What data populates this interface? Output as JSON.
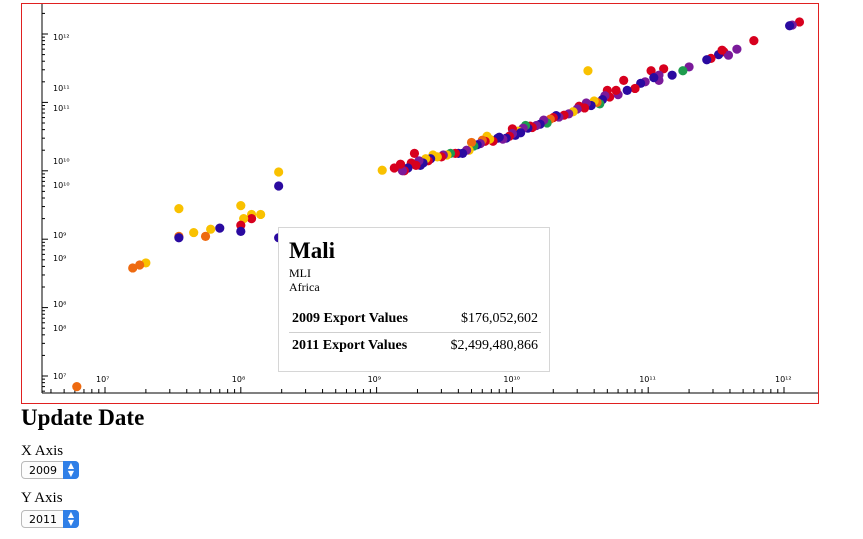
{
  "chart_data": {
    "type": "scatter",
    "x_scale": "log",
    "y_scale": "log",
    "xlim": [
      4000000,
      1400000000000
    ],
    "ylim": [
      8000000,
      1600000000000
    ],
    "x_ticks": [
      "10⁷",
      "10⁸",
      "10⁹",
      "10¹⁰",
      "10¹¹",
      "10¹²"
    ],
    "y_ticks": [
      "10⁷",
      "10⁸",
      "10⁸",
      "10⁹",
      "10⁹",
      "10¹⁰",
      "10¹⁰",
      "10¹¹",
      "10¹¹",
      "10¹²"
    ],
    "title": "",
    "xlabel": "",
    "ylabel": "",
    "colors": {
      "red": "#d7001e",
      "orange": "#ee6a10",
      "yellow": "#f9c100",
      "blue": "#2a0aa0",
      "purple": "#7a1a9a",
      "green": "#1e9c4e"
    },
    "points": [
      {
        "x": 6200000.0,
        "y": 7000000.0,
        "c": "orange"
      },
      {
        "x": 1300000000000.0,
        "y": 1500000000000.0,
        "c": "red"
      },
      {
        "x": 1150000000000.0,
        "y": 1350000000000.0,
        "c": "purple"
      },
      {
        "x": 1100000000000.0,
        "y": 1320000000000.0,
        "c": "blue"
      },
      {
        "x": 600000000000.0,
        "y": 800000000000.0,
        "c": "red"
      },
      {
        "x": 450000000000.0,
        "y": 600000000000.0,
        "c": "purple"
      },
      {
        "x": 360000000000.0,
        "y": 550000000000.0,
        "c": "red"
      },
      {
        "x": 330000000000.0,
        "y": 500000000000.0,
        "c": "blue"
      },
      {
        "x": 390000000000.0,
        "y": 490000000000.0,
        "c": "purple"
      },
      {
        "x": 350000000000.0,
        "y": 580000000000.0,
        "c": "red"
      },
      {
        "x": 290000000000.0,
        "y": 440000000000.0,
        "c": "red"
      },
      {
        "x": 270000000000.0,
        "y": 420000000000.0,
        "c": "blue"
      },
      {
        "x": 200000000000.0,
        "y": 330000000000.0,
        "c": "purple"
      },
      {
        "x": 180000000000.0,
        "y": 290000000000.0,
        "c": "green"
      },
      {
        "x": 150000000000.0,
        "y": 250000000000.0,
        "c": "blue"
      },
      {
        "x": 130000000000.0,
        "y": 310000000000.0,
        "c": "red"
      },
      {
        "x": 120000000000.0,
        "y": 210000000000.0,
        "c": "purple"
      },
      {
        "x": 105000000000.0,
        "y": 290000000000.0,
        "c": "red"
      },
      {
        "x": 120000000000.0,
        "y": 250000000000.0,
        "c": "purple"
      },
      {
        "x": 110000000000.0,
        "y": 230000000000.0,
        "c": "blue"
      },
      {
        "x": 95000000000.0,
        "y": 200000000000.0,
        "c": "purple"
      },
      {
        "x": 88000000000.0,
        "y": 190000000000.0,
        "c": "blue"
      },
      {
        "x": 80000000000.0,
        "y": 160000000000.0,
        "c": "red"
      },
      {
        "x": 70000000000.0,
        "y": 150000000000.0,
        "c": "blue"
      },
      {
        "x": 66000000000.0,
        "y": 210000000000.0,
        "c": "red"
      },
      {
        "x": 60000000000.0,
        "y": 130000000000.0,
        "c": "purple"
      },
      {
        "x": 58000000000.0,
        "y": 150000000000.0,
        "c": "red"
      },
      {
        "x": 52000000000.0,
        "y": 120000000000.0,
        "c": "red"
      },
      {
        "x": 50000000000.0,
        "y": 150000000000.0,
        "c": "red"
      },
      {
        "x": 48000000000.0,
        "y": 125000000000.0,
        "c": "purple"
      },
      {
        "x": 46000000000.0,
        "y": 110000000000.0,
        "c": "blue"
      },
      {
        "x": 44000000000.0,
        "y": 95000000000.0,
        "c": "green"
      },
      {
        "x": 42000000000.0,
        "y": 100000000000.0,
        "c": "orange"
      },
      {
        "x": 40000000000.0,
        "y": 105000000000.0,
        "c": "yellow"
      },
      {
        "x": 38000000000.0,
        "y": 90000000000.0,
        "c": "blue"
      },
      {
        "x": 35000000000.0,
        "y": 98000000000.0,
        "c": "purple"
      },
      {
        "x": 34000000000.0,
        "y": 83000000000.0,
        "c": "red"
      },
      {
        "x": 31000000000.0,
        "y": 88000000000.0,
        "c": "red"
      },
      {
        "x": 30000000000.0,
        "y": 80000000000.0,
        "c": "purple"
      },
      {
        "x": 28000000000.0,
        "y": 73000000000.0,
        "c": "yellow"
      },
      {
        "x": 26000000000.0,
        "y": 68000000000.0,
        "c": "purple"
      },
      {
        "x": 24000000000.0,
        "y": 65000000000.0,
        "c": "red"
      },
      {
        "x": 22000000000.0,
        "y": 61000000000.0,
        "c": "purple"
      },
      {
        "x": 21000000000.0,
        "y": 64000000000.0,
        "c": "blue"
      },
      {
        "x": 20000000000.0,
        "y": 60000000000.0,
        "c": "red"
      },
      {
        "x": 19000000000.0,
        "y": 57000000000.0,
        "c": "orange"
      },
      {
        "x": 18000000000.0,
        "y": 50000000000.0,
        "c": "green"
      },
      {
        "x": 17000000000.0,
        "y": 55000000000.0,
        "c": "purple"
      },
      {
        "x": 36000000000.0,
        "y": 290000000000.0,
        "c": "yellow"
      },
      {
        "x": 16000000000.0,
        "y": 48000000000.0,
        "c": "blue"
      },
      {
        "x": 15000000000.0,
        "y": 46000000000.0,
        "c": "purple"
      },
      {
        "x": 14000000000.0,
        "y": 43000000000.0,
        "c": "red"
      },
      {
        "x": 13500000000.0,
        "y": 45000000000.0,
        "c": "red"
      },
      {
        "x": 13000000000.0,
        "y": 42000000000.0,
        "c": "blue"
      },
      {
        "x": 12500000000.0,
        "y": 46000000000.0,
        "c": "green"
      },
      {
        "x": 12000000000.0,
        "y": 42000000000.0,
        "c": "purple"
      },
      {
        "x": 11000000000.0,
        "y": 38000000000.0,
        "c": "yellow"
      },
      {
        "x": 11500000000.0,
        "y": 36000000000.0,
        "c": "blue"
      },
      {
        "x": 10500000000.0,
        "y": 33000000000.0,
        "c": "blue"
      },
      {
        "x": 10000000000.0,
        "y": 41000000000.0,
        "c": "red"
      },
      {
        "x": 10000000000.0,
        "y": 35000000000.0,
        "c": "purple"
      },
      {
        "x": 9500000000.0,
        "y": 32000000000.0,
        "c": "red"
      },
      {
        "x": 9000000000.0,
        "y": 30000000000.0,
        "c": "blue"
      },
      {
        "x": 8500000000.0,
        "y": 29000000000.0,
        "c": "purple"
      },
      {
        "x": 8000000000.0,
        "y": 31000000000.0,
        "c": "blue"
      },
      {
        "x": 7800000000.0,
        "y": 30000000000.0,
        "c": "blue"
      },
      {
        "x": 7200000000.0,
        "y": 27000000000.0,
        "c": "red"
      },
      {
        "x": 6800000000.0,
        "y": 29000000000.0,
        "c": "yellow"
      },
      {
        "x": 6500000000.0,
        "y": 32000000000.0,
        "c": "yellow"
      },
      {
        "x": 6300000000.0,
        "y": 27000000000.0,
        "c": "red"
      },
      {
        "x": 6000000000.0,
        "y": 28000000000.0,
        "c": "orange"
      },
      {
        "x": 5800000000.0,
        "y": 25000000000.0,
        "c": "purple"
      },
      {
        "x": 5500000000.0,
        "y": 24000000000.0,
        "c": "blue"
      },
      {
        "x": 5200000000.0,
        "y": 23000000000.0,
        "c": "green"
      },
      {
        "x": 5000000000.0,
        "y": 26000000000.0,
        "c": "orange"
      },
      {
        "x": 4800000000.0,
        "y": 20000000000.0,
        "c": "yellow"
      },
      {
        "x": 4600000000.0,
        "y": 20000000000.0,
        "c": "purple"
      },
      {
        "x": 4300000000.0,
        "y": 18000000000.0,
        "c": "blue"
      },
      {
        "x": 4000000000.0,
        "y": 18000000000.0,
        "c": "blue"
      },
      {
        "x": 3800000000.0,
        "y": 18000000000.0,
        "c": "red"
      },
      {
        "x": 3500000000.0,
        "y": 18000000000.0,
        "c": "green"
      },
      {
        "x": 3300000000.0,
        "y": 17000000000.0,
        "c": "yellow"
      },
      {
        "x": 3100000000.0,
        "y": 17000000000.0,
        "c": "purple"
      },
      {
        "x": 3000000000.0,
        "y": 16000000000.0,
        "c": "red"
      },
      {
        "x": 2800000000.0,
        "y": 16000000000.0,
        "c": "yellow"
      },
      {
        "x": 2600000000.0,
        "y": 17000000000.0,
        "c": "yellow"
      },
      {
        "x": 2500000000.0,
        "y": 15000000000.0,
        "c": "blue"
      },
      {
        "x": 2400000000.0,
        "y": 14000000000.0,
        "c": "red"
      },
      {
        "x": 2300000000.0,
        "y": 15000000000.0,
        "c": "yellow"
      },
      {
        "x": 2200000000.0,
        "y": 13000000000.0,
        "c": "blue"
      },
      {
        "x": 2100000000.0,
        "y": 12000000000.0,
        "c": "blue"
      },
      {
        "x": 2050000000.0,
        "y": 14000000000.0,
        "c": "purple"
      },
      {
        "x": 1950000000.0,
        "y": 12000000000.0,
        "c": "red"
      },
      {
        "x": 1900000000.0,
        "y": 18000000000.0,
        "c": "red"
      },
      {
        "x": 1800000000.0,
        "y": 13000000000.0,
        "c": "red"
      },
      {
        "x": 1700000000.0,
        "y": 11000000000.0,
        "c": "blue"
      },
      {
        "x": 1600000000.0,
        "y": 10000000000.0,
        "c": "red"
      },
      {
        "x": 1550000000.0,
        "y": 10000000000.0,
        "c": "purple"
      },
      {
        "x": 1500000000.0,
        "y": 12500000000.0,
        "c": "red"
      },
      {
        "x": 1350000000.0,
        "y": 11000000000.0,
        "c": "red"
      },
      {
        "x": 1100000000.0,
        "y": 10200000000.0,
        "c": "yellow"
      },
      {
        "x": 190000000.0,
        "y": 9600000000.0,
        "c": "yellow"
      },
      {
        "x": 190000000.0,
        "y": 6000000000.0,
        "c": "blue"
      },
      {
        "x": 190000000.0,
        "y": 1050000000.0,
        "c": "blue"
      },
      {
        "x": 140000000.0,
        "y": 2300000000.0,
        "c": "yellow"
      },
      {
        "x": 120000000.0,
        "y": 2300000000.0,
        "c": "yellow"
      },
      {
        "x": 120000000.0,
        "y": 2000000000.0,
        "c": "red"
      },
      {
        "x": 100000000.0,
        "y": 3100000000.0,
        "c": "yellow"
      },
      {
        "x": 105000000.0,
        "y": 2000000000.0,
        "c": "yellow"
      },
      {
        "x": 100000000.0,
        "y": 1600000000.0,
        "c": "red"
      },
      {
        "x": 100000000.0,
        "y": 1300000000.0,
        "c": "blue"
      },
      {
        "x": 70000000.0,
        "y": 1450000000.0,
        "c": "blue"
      },
      {
        "x": 60000000.0,
        "y": 1400000000.0,
        "c": "yellow"
      },
      {
        "x": 55000000.0,
        "y": 1100000000.0,
        "c": "orange"
      },
      {
        "x": 45000000.0,
        "y": 1250000000.0,
        "c": "yellow"
      },
      {
        "x": 35000000.0,
        "y": 1100000000.0,
        "c": "orange"
      },
      {
        "x": 35000000.0,
        "y": 2800000000.0,
        "c": "yellow"
      },
      {
        "x": 35000000.0,
        "y": 1050000000.0,
        "c": "blue"
      },
      {
        "x": 20000000.0,
        "y": 450000000.0,
        "c": "yellow"
      },
      {
        "x": 18000000.0,
        "y": 420000000.0,
        "c": "orange"
      },
      {
        "x": 16000000.0,
        "y": 380000000.0,
        "c": "orange"
      },
      {
        "x": 360000000.0,
        "y": 500000000.0,
        "c": "orange"
      },
      {
        "x": 350000000.0,
        "y": 600000000.0,
        "c": "purple"
      },
      {
        "x": 450000000.0,
        "y": 700000000.0,
        "c": "purple"
      }
    ]
  },
  "tooltip": {
    "name": "Mali",
    "code": "MLI",
    "region": "Africa",
    "rows": [
      {
        "label": "2009 Export Values",
        "value": "$176,052,602"
      },
      {
        "label": "2011 Export Values",
        "value": "$2,499,480,866"
      }
    ]
  },
  "controls": {
    "title": "Update Date",
    "x_axis_label": "X Axis",
    "x_axis_value": "2009",
    "y_axis_label": "Y Axis",
    "y_axis_value": "2011"
  }
}
